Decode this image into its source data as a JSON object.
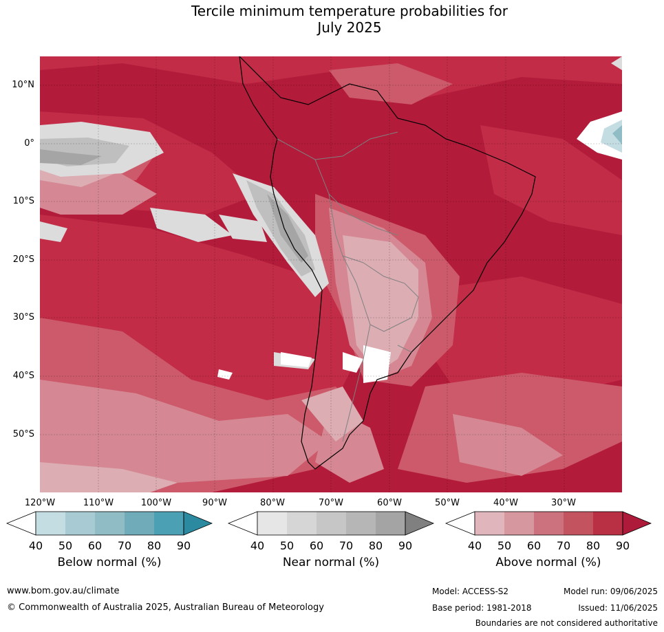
{
  "title": {
    "line1": "Tercile minimum temperature probabilities for",
    "line2": "July 2025"
  },
  "map": {
    "lat_labels": [
      "10°N",
      "0°",
      "10°S",
      "20°S",
      "30°S",
      "40°S",
      "50°S"
    ],
    "lon_labels": [
      "120°W",
      "110°W",
      "100°W",
      "90°W",
      "80°W",
      "70°W",
      "60°W",
      "50°W",
      "40°W",
      "30°W"
    ],
    "dominant_category": "Above normal",
    "colors": {
      "background_above_90": "#b31b3a",
      "above_80": "#c22c47",
      "above_70": "#cc5a6a",
      "above_60": "#d58893",
      "above_50": "#dcadb3",
      "below_40_white": "#ffffff",
      "near_normal_50": "#dcdcdc",
      "near_normal_70": "#bfbfbf",
      "near_normal_80": "#a5a5a5",
      "below_normal_60": "#8fbcc5",
      "below_normal_80": "#4ba0b3",
      "coastline": "#000000",
      "borders": "#808080"
    }
  },
  "colorbars": [
    {
      "label": "Below normal (%)",
      "ticks": [
        "40",
        "50",
        "60",
        "70",
        "80",
        "90"
      ],
      "colors": [
        "#ffffff",
        "#c4dde3",
        "#a8cbd3",
        "#8fbcc5",
        "#6fabb9",
        "#4ba0b3",
        "#2b8aa0"
      ]
    },
    {
      "label": "Near normal (%)",
      "ticks": [
        "40",
        "50",
        "60",
        "70",
        "80",
        "90"
      ],
      "colors": [
        "#ffffff",
        "#e6e6e6",
        "#d6d6d6",
        "#c6c6c6",
        "#b6b6b6",
        "#a4a4a4",
        "#808080"
      ]
    },
    {
      "label": "Above normal (%)",
      "ticks": [
        "40",
        "50",
        "60",
        "70",
        "80",
        "90"
      ],
      "colors": [
        "#ffffff",
        "#e0b6bc",
        "#d7979f",
        "#cc727e",
        "#c2535f",
        "#b93045",
        "#ad1a3a"
      ]
    }
  ],
  "footer": {
    "website": "www.bom.gov.au/climate",
    "copyright": "© Commonwealth of Australia 2025, Australian Bureau of Meteorology",
    "model": "Model: ACCESS-S2",
    "model_run": "Model run: 09/06/2025",
    "base_period": "Base period: 1981-2018",
    "issued": "Issued: 11/06/2025",
    "disclaimer": "Boundaries are not considered authoritative"
  }
}
